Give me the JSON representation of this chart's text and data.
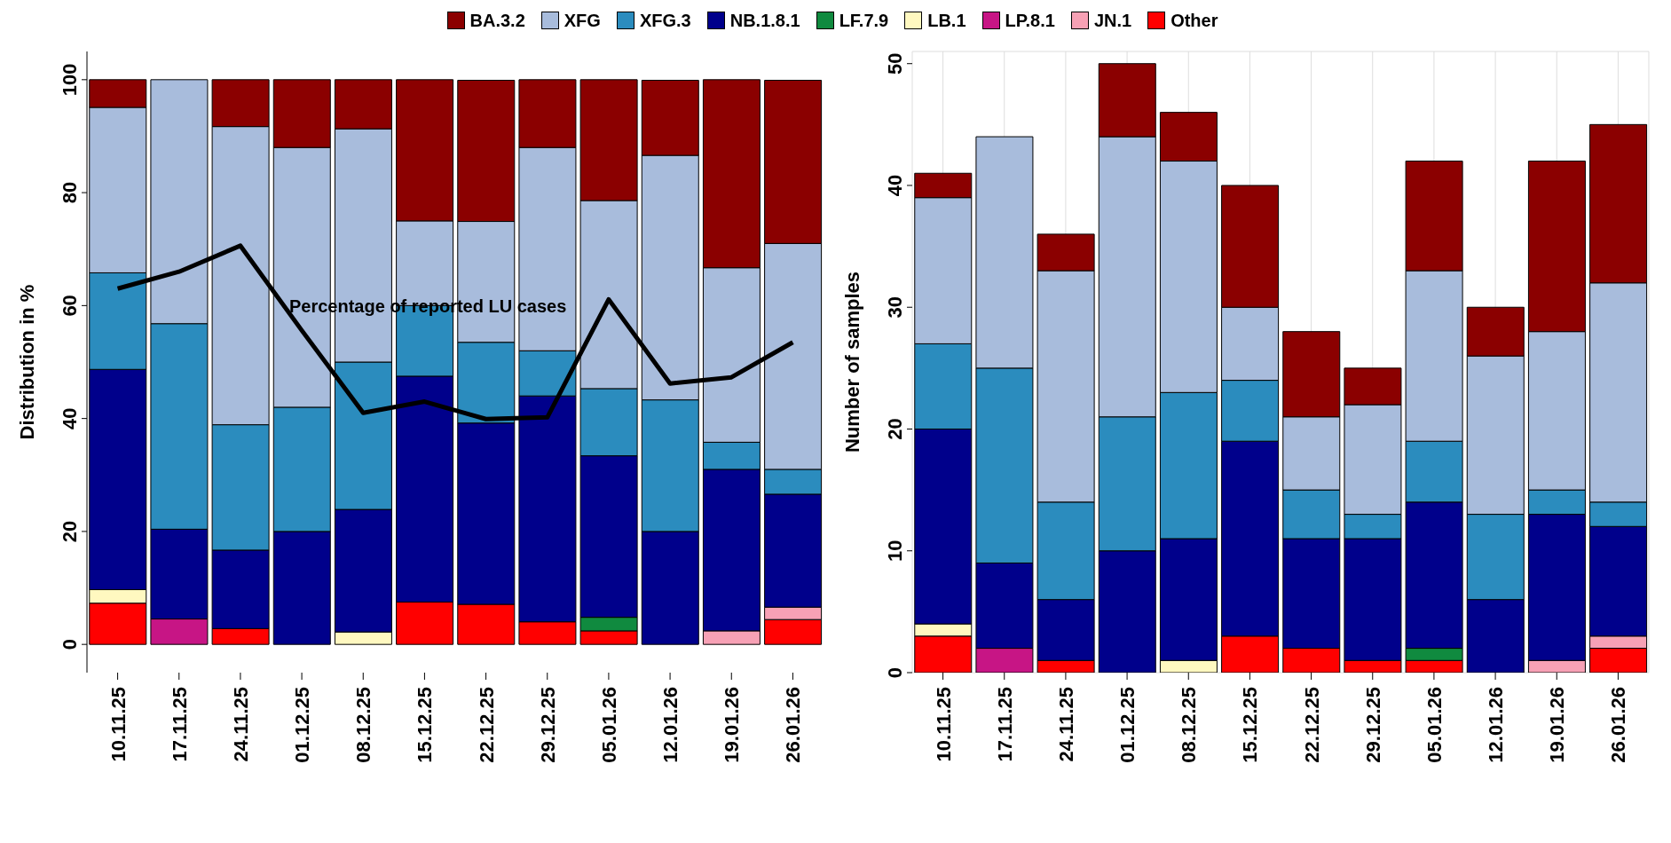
{
  "chart_data": [
    {
      "type": "bar",
      "stacked": true,
      "ylabel": "Distribution in %",
      "legend": "top",
      "grid": false,
      "ylim": [
        -5,
        105
      ],
      "yticks": [
        0,
        20,
        40,
        60,
        80,
        100
      ],
      "categories": [
        "10.11.25",
        "17.11.25",
        "24.11.25",
        "01.12.25",
        "08.12.25",
        "15.12.25",
        "22.12.25",
        "29.12.25",
        "05.01.26",
        "12.01.26",
        "19.01.26",
        "26.01.26"
      ],
      "annotations": [
        "Percentage of reported LU cases"
      ],
      "series": [
        {
          "name": "Other",
          "color": "#ff0000",
          "values": [
            7.3,
            null,
            2.8,
            null,
            null,
            7.5,
            7.1,
            4,
            2.4,
            null,
            null,
            4.4
          ]
        },
        {
          "name": "JN.1",
          "color": "#f7a1b5",
          "values": [
            null,
            null,
            null,
            null,
            null,
            null,
            null,
            null,
            null,
            null,
            2.4,
            2.2
          ]
        },
        {
          "name": "LP.8.1",
          "color": "#c71585",
          "values": [
            null,
            4.5,
            null,
            null,
            null,
            null,
            null,
            null,
            null,
            null,
            null,
            null
          ]
        },
        {
          "name": "LB.1",
          "color": "#fff8c0",
          "values": [
            2.4,
            null,
            null,
            null,
            2.2,
            null,
            null,
            null,
            null,
            null,
            null,
            null
          ]
        },
        {
          "name": "LF.7.9",
          "color": "#108a3f",
          "values": [
            null,
            null,
            null,
            null,
            null,
            null,
            null,
            null,
            2.4,
            null,
            null,
            null
          ]
        },
        {
          "name": "NB.1.8.1",
          "color": "#00008b",
          "values": [
            39,
            15.9,
            13.9,
            20,
            21.7,
            40,
            32.1,
            40,
            28.6,
            20,
            28.6,
            20
          ]
        },
        {
          "name": "XFG.3",
          "color": "#2b8cbe",
          "values": [
            17.1,
            36.4,
            22.2,
            22,
            26.1,
            12.5,
            14.3,
            8,
            11.9,
            23.3,
            4.8,
            4.4
          ]
        },
        {
          "name": "XFG",
          "color": "#a8bcdc",
          "values": [
            29.3,
            43.2,
            52.8,
            46,
            41.3,
            15,
            21.4,
            36,
            33.3,
            43.3,
            30.9,
            40
          ]
        },
        {
          "name": "BA.3.2",
          "color": "#8b0000",
          "values": [
            4.9,
            null,
            8.3,
            12,
            8.7,
            25,
            25,
            12,
            21.4,
            13.3,
            33.3,
            28.9
          ]
        },
        {
          "type": "line",
          "color": "#000000",
          "marker": "none",
          "values": [
            63,
            66,
            70.6,
            55.6,
            41,
            43,
            39.9,
            40.2,
            61.1,
            46.2,
            47.3,
            53.5
          ]
        }
      ]
    },
    {
      "type": "bar",
      "stacked": true,
      "ylabel": "Number of samples",
      "grid": true,
      "ylim": [
        0,
        51
      ],
      "yticks": [
        0,
        10,
        20,
        30,
        40,
        50
      ],
      "categories": [
        "10.11.25",
        "17.11.25",
        "24.11.25",
        "01.12.25",
        "08.12.25",
        "15.12.25",
        "22.12.25",
        "29.12.25",
        "05.01.26",
        "12.01.26",
        "19.01.26",
        "26.01.26"
      ],
      "series": [
        {
          "name": "Other",
          "color": "#ff0000",
          "values": [
            3,
            null,
            1,
            null,
            null,
            3,
            2,
            1,
            1,
            null,
            null,
            2
          ]
        },
        {
          "name": "JN.1",
          "color": "#f7a1b5",
          "values": [
            null,
            null,
            null,
            null,
            null,
            null,
            null,
            null,
            null,
            null,
            1,
            1
          ]
        },
        {
          "name": "LP.8.1",
          "color": "#c71585",
          "values": [
            null,
            2,
            null,
            null,
            null,
            null,
            null,
            null,
            null,
            null,
            null,
            null
          ]
        },
        {
          "name": "LB.1",
          "color": "#fff8c0",
          "values": [
            1,
            null,
            null,
            null,
            1,
            null,
            null,
            null,
            null,
            null,
            null,
            null
          ]
        },
        {
          "name": "LF.7.9",
          "color": "#108a3f",
          "values": [
            null,
            null,
            null,
            null,
            null,
            null,
            null,
            null,
            1,
            null,
            null,
            null
          ]
        },
        {
          "name": "NB.1.8.1",
          "color": "#00008b",
          "values": [
            16,
            7,
            5,
            10,
            10,
            16,
            9,
            10,
            12,
            6,
            12,
            9
          ]
        },
        {
          "name": "XFG.3",
          "color": "#2b8cbe",
          "values": [
            7,
            16,
            8,
            11,
            12,
            5,
            4,
            2,
            5,
            7,
            2,
            2
          ]
        },
        {
          "name": "XFG",
          "color": "#a8bcdc",
          "values": [
            12,
            19,
            19,
            23,
            19,
            6,
            6,
            9,
            14,
            13,
            13,
            18
          ]
        },
        {
          "name": "BA.3.2",
          "color": "#8b0000",
          "values": [
            2,
            null,
            3,
            6,
            4,
            10,
            7,
            3,
            9,
            4,
            14,
            13
          ]
        }
      ]
    }
  ]
}
